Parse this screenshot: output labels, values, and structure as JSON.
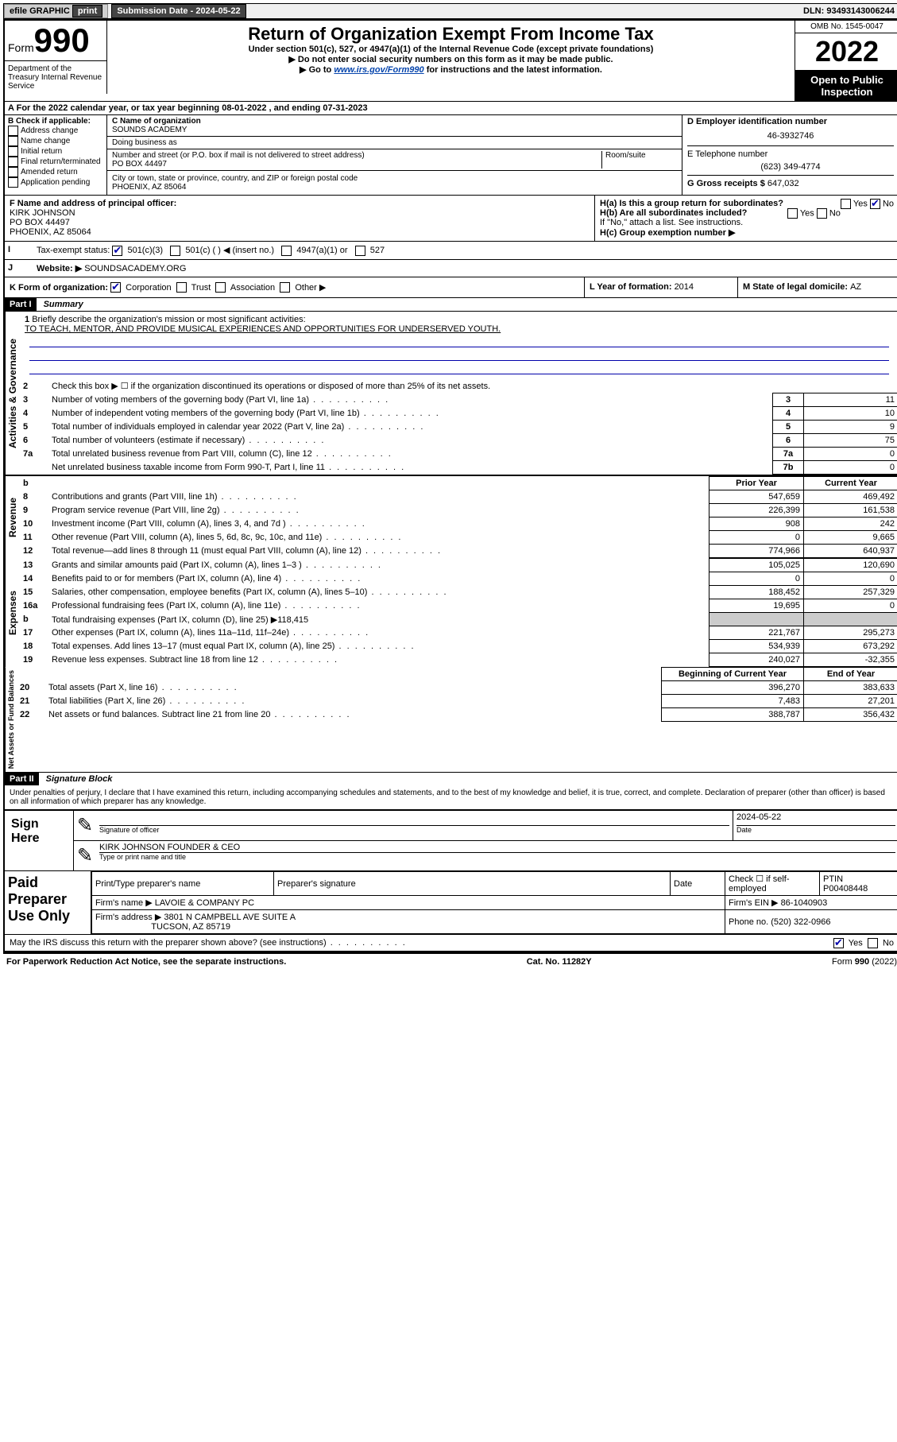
{
  "topbar": {
    "efile": "efile GRAPHIC",
    "print": "print",
    "sub_label": "Submission Date - ",
    "sub_date": "2024-05-22",
    "dln_label": "DLN: ",
    "dln": "93493143006244"
  },
  "header": {
    "form_word": "Form",
    "form_num": "990",
    "title": "Return of Organization Exempt From Income Tax",
    "subtitle": "Under section 501(c), 527, or 4947(a)(1) of the Internal Revenue Code (except private foundations)",
    "note1": "▶ Do not enter social security numbers on this form as it may be made public.",
    "note2_pre": "▶ Go to ",
    "note2_link": "www.irs.gov/Form990",
    "note2_post": " for instructions and the latest information.",
    "omb": "OMB No. 1545-0047",
    "year": "2022",
    "open": "Open to Public Inspection",
    "dept": "Department of the Treasury Internal Revenue Service"
  },
  "calyear": "For the 2022 calendar year, or tax year beginning 08-01-2022    , and ending 07-31-2023",
  "section_b": {
    "label": "B Check if applicable:",
    "items": [
      "Address change",
      "Name change",
      "Initial return",
      "Final return/terminated",
      "Amended return",
      "Application pending"
    ]
  },
  "section_c": {
    "name_label": "C Name of organization",
    "name": "SOUNDS ACADEMY",
    "dba_label": "Doing business as",
    "addr_label": "Number and street (or P.O. box if mail is not delivered to street address)",
    "room_label": "Room/suite",
    "addr": "PO BOX 44497",
    "city_label": "City or town, state or province, country, and ZIP or foreign postal code",
    "city": "PHOENIX, AZ  85064"
  },
  "section_d": {
    "label": "D Employer identification number",
    "ein": "46-3932746",
    "e_label": "E Telephone number",
    "phone": "(623) 349-4774",
    "g_label": "G Gross receipts $ ",
    "g_val": "647,032"
  },
  "section_f": {
    "label": "F  Name and address of principal officer:",
    "name": "KIRK JOHNSON",
    "addr1": "PO BOX 44497",
    "addr2": "PHOENIX, AZ  85064"
  },
  "section_h": {
    "ha": "H(a)  Is this a group return for subordinates?",
    "hb": "H(b)  Are all subordinates included?",
    "hb_note": "If \"No,\" attach a list. See instructions.",
    "hc": "H(c)  Group exemption number ▶",
    "yes": "Yes",
    "no": "No"
  },
  "tax_status": {
    "label": "Tax-exempt status:",
    "i": "I",
    "opt1": "501(c)(3)",
    "opt2": "501(c) (   ) ◀ (insert no.)",
    "opt3": "4947(a)(1) or",
    "opt4": "527"
  },
  "website": {
    "j": "J",
    "label": "Website: ▶",
    "val": "SOUNDSACADEMY.ORG"
  },
  "section_k": {
    "label": "K Form of organization:",
    "opts": [
      "Corporation",
      "Trust",
      "Association",
      "Other ▶"
    ]
  },
  "section_l": {
    "label": "L Year of formation: ",
    "val": "2014"
  },
  "section_m": {
    "label": "M State of legal domicile: ",
    "val": "AZ"
  },
  "part1": {
    "header": "Part I",
    "title": "Summary"
  },
  "mission": {
    "num": "1",
    "label": "Briefly describe the organization's mission or most significant activities:",
    "text": "TO TEACH, MENTOR, AND PROVIDE MUSICAL EXPERIENCES AND OPPORTUNITIES FOR UNDERSERVED YOUTH."
  },
  "gov_lines": [
    {
      "n": "2",
      "t": "Check this box ▶ ☐  if the organization discontinued its operations or disposed of more than 25% of its net assets.",
      "box": "",
      "val": ""
    },
    {
      "n": "3",
      "t": "Number of voting members of the governing body (Part VI, line 1a)",
      "box": "3",
      "val": "11"
    },
    {
      "n": "4",
      "t": "Number of independent voting members of the governing body (Part VI, line 1b)",
      "box": "4",
      "val": "10"
    },
    {
      "n": "5",
      "t": "Total number of individuals employed in calendar year 2022 (Part V, line 2a)",
      "box": "5",
      "val": "9"
    },
    {
      "n": "6",
      "t": "Total number of volunteers (estimate if necessary)",
      "box": "6",
      "val": "75"
    },
    {
      "n": "7a",
      "t": "Total unrelated business revenue from Part VIII, column (C), line 12",
      "box": "7a",
      "val": "0"
    },
    {
      "n": "",
      "t": "Net unrelated business taxable income from Form 990-T, Part I, line 11",
      "box": "7b",
      "val": "0"
    }
  ],
  "gov_label": "Activities & Governance",
  "rev_label": "Revenue",
  "exp_label": "Expenses",
  "na_label": "Net Assets or Fund Balances",
  "columns": {
    "blank": "b",
    "prior": "Prior Year",
    "current": "Current Year"
  },
  "rev_lines": [
    {
      "n": "8",
      "t": "Contributions and grants (Part VIII, line 1h)",
      "p": "547,659",
      "c": "469,492"
    },
    {
      "n": "9",
      "t": "Program service revenue (Part VIII, line 2g)",
      "p": "226,399",
      "c": "161,538"
    },
    {
      "n": "10",
      "t": "Investment income (Part VIII, column (A), lines 3, 4, and 7d )",
      "p": "908",
      "c": "242"
    },
    {
      "n": "11",
      "t": "Other revenue (Part VIII, column (A), lines 5, 6d, 8c, 9c, 10c, and 11e)",
      "p": "0",
      "c": "9,665"
    },
    {
      "n": "12",
      "t": "Total revenue—add lines 8 through 11 (must equal Part VIII, column (A), line 12)",
      "p": "774,966",
      "c": "640,937"
    }
  ],
  "exp_lines": [
    {
      "n": "13",
      "t": "Grants and similar amounts paid (Part IX, column (A), lines 1–3 )",
      "p": "105,025",
      "c": "120,690"
    },
    {
      "n": "14",
      "t": "Benefits paid to or for members (Part IX, column (A), line 4)",
      "p": "0",
      "c": "0"
    },
    {
      "n": "15",
      "t": "Salaries, other compensation, employee benefits (Part IX, column (A), lines 5–10)",
      "p": "188,452",
      "c": "257,329"
    },
    {
      "n": "16a",
      "t": "Professional fundraising fees (Part IX, column (A), line 11e)",
      "p": "19,695",
      "c": "0"
    },
    {
      "n": "b",
      "t": "Total fundraising expenses (Part IX, column (D), line 25) ▶118,415",
      "p": "",
      "c": ""
    },
    {
      "n": "17",
      "t": "Other expenses (Part IX, column (A), lines 11a–11d, 11f–24e)",
      "p": "221,767",
      "c": "295,273"
    },
    {
      "n": "18",
      "t": "Total expenses. Add lines 13–17 (must equal Part IX, column (A), line 25)",
      "p": "534,939",
      "c": "673,292"
    },
    {
      "n": "19",
      "t": "Revenue less expenses. Subtract line 18 from line 12",
      "p": "240,027",
      "c": "-32,355"
    }
  ],
  "na_cols": {
    "begin": "Beginning of Current Year",
    "end": "End of Year"
  },
  "na_lines": [
    {
      "n": "20",
      "t": "Total assets (Part X, line 16)",
      "p": "396,270",
      "c": "383,633"
    },
    {
      "n": "21",
      "t": "Total liabilities (Part X, line 26)",
      "p": "7,483",
      "c": "27,201"
    },
    {
      "n": "22",
      "t": "Net assets or fund balances. Subtract line 21 from line 20",
      "p": "388,787",
      "c": "356,432"
    }
  ],
  "part2": {
    "header": "Part II",
    "title": "Signature Block"
  },
  "penalty": "Under penalties of perjury, I declare that I have examined this return, including accompanying schedules and statements, and to the best of my knowledge and belief, it is true, correct, and complete. Declaration of preparer (other than officer) is based on all information of which preparer has any knowledge.",
  "sign": {
    "here": "Sign Here",
    "sig_officer": "Signature of officer",
    "date": "Date",
    "sig_date": "2024-05-22",
    "name": "KIRK JOHNSON  FOUNDER & CEO",
    "type_name": "Type or print name and title"
  },
  "paid": {
    "label": "Paid Preparer Use Only",
    "h1": "Print/Type preparer's name",
    "h2": "Preparer's signature",
    "h3": "Date",
    "h4_a": "Check ☐ if self-employed",
    "h4_b": "PTIN",
    "ptin": "P00408448",
    "firm_name_l": "Firm's name    ▶ ",
    "firm_name": "LAVOIE & COMPANY PC",
    "firm_ein_l": "Firm's EIN ▶ ",
    "firm_ein": "86-1040903",
    "firm_addr_l": "Firm's address ▶ ",
    "firm_addr1": "3801 N CAMPBELL AVE SUITE A",
    "firm_addr2": "TUCSON, AZ  85719",
    "phone_l": "Phone no. ",
    "phone": "(520) 322-0966"
  },
  "discuss": "May the IRS discuss this return with the preparer shown above? (see instructions)",
  "footer": {
    "left": "For Paperwork Reduction Act Notice, see the separate instructions.",
    "mid": "Cat. No. 11282Y",
    "right": "Form 990 (2022)"
  },
  "colors": {
    "link": "#0645ad",
    "checked": "#0000aa"
  }
}
